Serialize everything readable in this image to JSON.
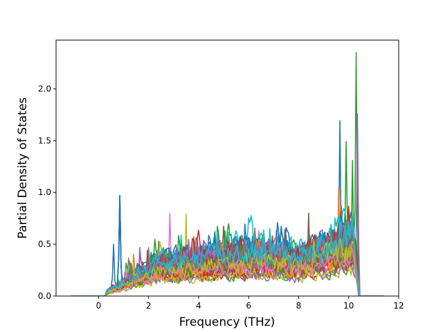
{
  "chart_data": {
    "type": "line",
    "title": "",
    "xlabel": "Frequency (THz)",
    "ylabel": "Partial Density of States",
    "xlim": [
      -1.7,
      12
    ],
    "ylim": [
      0,
      2.47
    ],
    "xticks": [
      0,
      2,
      4,
      6,
      8,
      10,
      12
    ],
    "yticks": [
      0.0,
      0.5,
      1.0,
      1.5,
      2.0
    ],
    "xtick_labels": [
      "0",
      "2",
      "4",
      "6",
      "8",
      "10",
      "12"
    ],
    "ytick_labels": [
      "0.0",
      "0.5",
      "1.0",
      "1.5",
      "2.0"
    ],
    "grid": false,
    "legend": "none",
    "series_count": 40,
    "colors": [
      "#1f77b4",
      "#ff7f0e",
      "#2ca02c",
      "#d62728",
      "#9467bd",
      "#8c564b",
      "#e377c2",
      "#7f7f7f",
      "#bcbd22",
      "#17becf"
    ],
    "x_range_data": [
      -1.1,
      11.4
    ],
    "nonzero_range": [
      0.3,
      10.4
    ],
    "notable_peaks": [
      {
        "x": 0.85,
        "y": 0.97,
        "color": "#1f77b4"
      },
      {
        "x": 0.6,
        "y": 0.5,
        "color": "#1f77b4"
      },
      {
        "x": 9.65,
        "y": 1.69,
        "color": "#1f77b4"
      },
      {
        "x": 9.9,
        "y": 1.49,
        "color": "#2ca02c"
      },
      {
        "x": 10.3,
        "y": 2.35,
        "color": "#2ca02c"
      },
      {
        "x": 10.35,
        "y": 1.76,
        "color": "#9467bd"
      },
      {
        "x": 10.15,
        "y": 1.31,
        "color": "#2ca02c"
      },
      {
        "x": 9.6,
        "y": 1.05,
        "color": "#ff7f0e"
      },
      {
        "x": 2.85,
        "y": 0.8,
        "color": "#e377c2"
      },
      {
        "x": 3.5,
        "y": 0.79,
        "color": "#bcbd22"
      },
      {
        "x": 8.4,
        "y": 0.8,
        "color": "#8c564b"
      }
    ]
  }
}
